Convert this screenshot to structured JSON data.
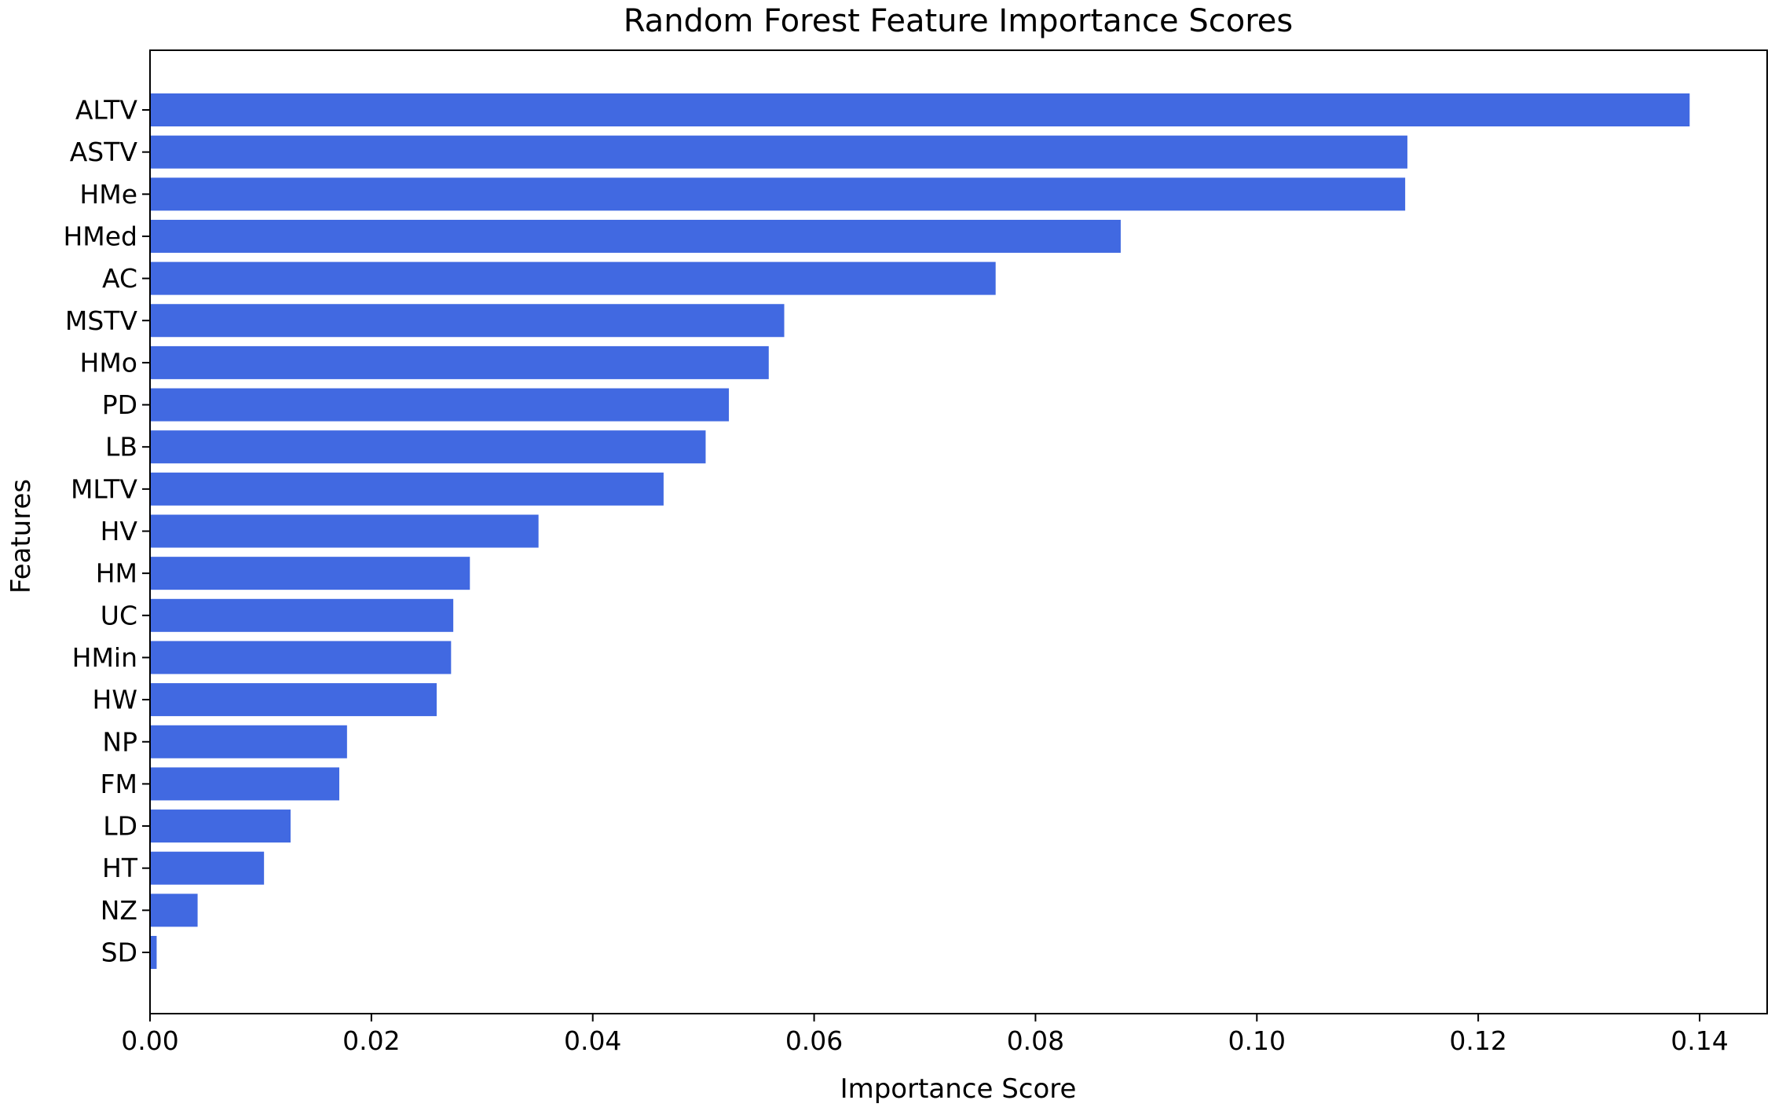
{
  "chart_data": {
    "type": "bar",
    "orientation": "horizontal",
    "title": "Random Forest Feature Importance Scores",
    "xlabel": "Importance Score",
    "ylabel": "Features",
    "xlim": [
      0,
      0.146
    ],
    "xticks": [
      0.0,
      0.02,
      0.04,
      0.06,
      0.08,
      0.1,
      0.12,
      0.14
    ],
    "xtick_labels": [
      "0.00",
      "0.02",
      "0.04",
      "0.06",
      "0.08",
      "0.10",
      "0.12",
      "0.14"
    ],
    "grid": false,
    "bar_color": "#4169e1",
    "categories": [
      "ALTV",
      "ASTV",
      "HMe",
      "HMed",
      "AC",
      "MSTV",
      "HMo",
      "PD",
      "LB",
      "MLTV",
      "HV",
      "HM",
      "UC",
      "HMin",
      "HW",
      "NP",
      "FM",
      "LD",
      "HT",
      "NZ",
      "SD"
    ],
    "values": [
      0.1391,
      0.1136,
      0.1134,
      0.0877,
      0.0764,
      0.0573,
      0.0559,
      0.0523,
      0.0502,
      0.0464,
      0.0351,
      0.0289,
      0.0274,
      0.0272,
      0.0259,
      0.0178,
      0.0171,
      0.0127,
      0.0103,
      0.0043,
      0.0006
    ]
  }
}
